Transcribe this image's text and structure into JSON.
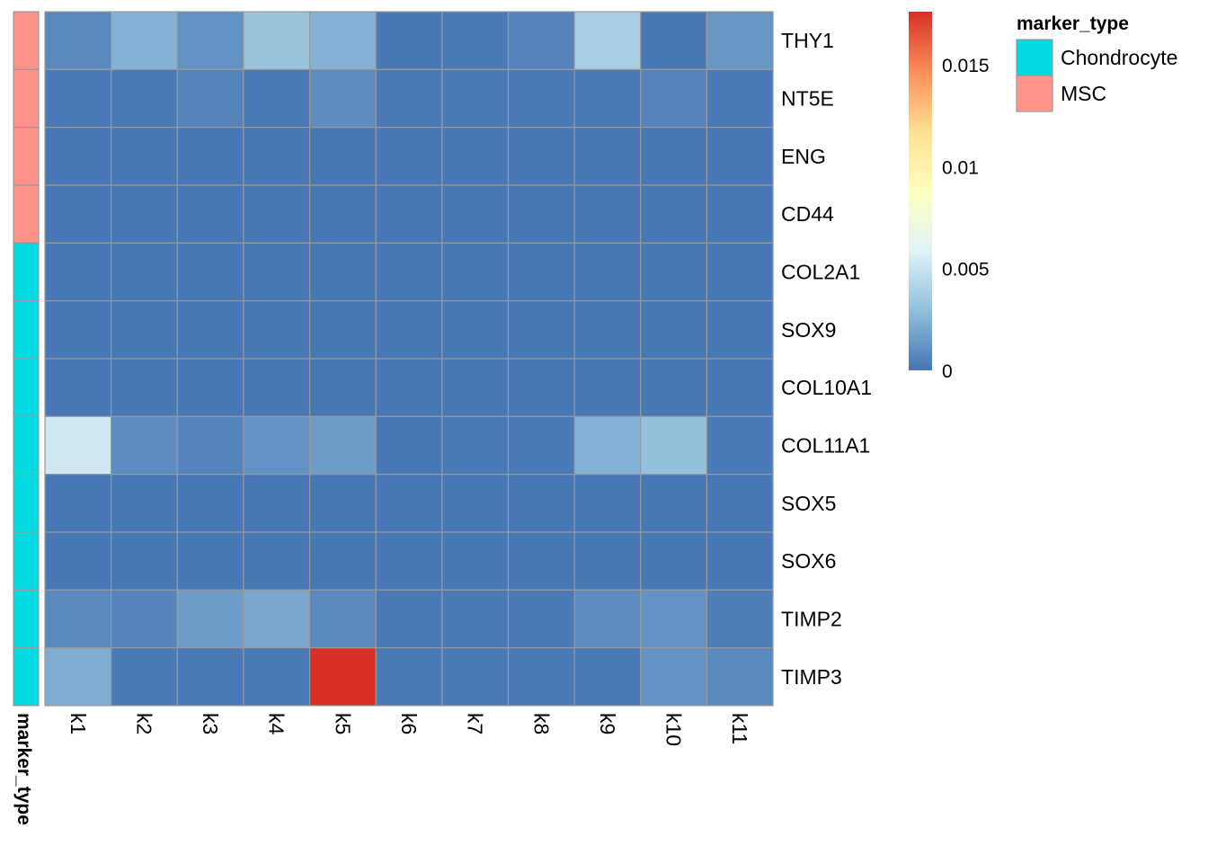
{
  "chart_data": {
    "type": "heatmap",
    "columns": [
      "k1",
      "k2",
      "k3",
      "k4",
      "k5",
      "k6",
      "k7",
      "k8",
      "k9",
      "k10",
      "k11"
    ],
    "rows": [
      "THY1",
      "NT5E",
      "ENG",
      "CD44",
      "COL2A1",
      "SOX9",
      "COL10A1",
      "COL11A1",
      "SOX5",
      "SOX6",
      "TIMP2",
      "TIMP3"
    ],
    "values": [
      [
        0.0008,
        0.0024,
        0.0011,
        0.0032,
        0.0024,
        0.0001,
        0.0002,
        0.0006,
        0.0038,
        0.0001,
        0.0013
      ],
      [
        0.0002,
        0.0002,
        0.0006,
        0.0002,
        0.0009,
        0.0002,
        0.0002,
        0.0002,
        0.0002,
        0.0006,
        0.0002
      ],
      [
        0.0001,
        0.0001,
        0.0001,
        0.0001,
        0.0001,
        0.0001,
        0.0001,
        0.0001,
        0.0001,
        0.0001,
        0.0001
      ],
      [
        0.0001,
        0.0001,
        0.0001,
        0.0001,
        0.0001,
        0.0001,
        0.0001,
        0.0001,
        0.0001,
        0.0001,
        0.0001
      ],
      [
        0.0001,
        0.0001,
        0.0001,
        0.0001,
        0.0001,
        0.0001,
        0.0001,
        0.0001,
        0.0001,
        0.0001,
        0.0001
      ],
      [
        0.0001,
        0.0001,
        0.0001,
        0.0001,
        0.0001,
        0.0001,
        0.0001,
        0.0001,
        0.0001,
        0.0001,
        0.0001
      ],
      [
        0.0001,
        0.0001,
        0.0001,
        0.0001,
        0.0001,
        0.0001,
        0.0001,
        0.0001,
        0.0001,
        0.0001,
        0.0001
      ],
      [
        0.0052,
        0.0009,
        0.0006,
        0.0011,
        0.0016,
        0.0001,
        0.0002,
        0.0002,
        0.0024,
        0.003,
        0.0002
      ],
      [
        0.0001,
        0.0001,
        0.0001,
        0.0001,
        0.0001,
        0.0001,
        0.0001,
        0.0001,
        0.0001,
        0.0001,
        0.0001
      ],
      [
        0.0001,
        0.0001,
        0.0001,
        0.0001,
        0.0001,
        0.0001,
        0.0001,
        0.0001,
        0.0001,
        0.0001,
        0.0001
      ],
      [
        0.0008,
        0.0006,
        0.0016,
        0.002,
        0.0008,
        0.0002,
        0.0002,
        0.0002,
        0.0009,
        0.0011,
        0.0004
      ],
      [
        0.0022,
        0.0002,
        0.0002,
        0.0002,
        0.0176,
        0.0002,
        0.0002,
        0.0002,
        0.0002,
        0.0011,
        0.0008
      ]
    ],
    "row_annotation": {
      "title": "marker_type",
      "values": [
        "MSC",
        "MSC",
        "MSC",
        "MSC",
        "Chondrocyte",
        "Chondrocyte",
        "Chondrocyte",
        "Chondrocyte",
        "Chondrocyte",
        "Chondrocyte",
        "Chondrocyte",
        "Chondrocyte"
      ],
      "legend": [
        {
          "label": "Chondrocyte",
          "color": "#00DAE0"
        },
        {
          "label": "MSC",
          "color": "#FF9289"
        }
      ]
    },
    "color_scale": {
      "min": 0,
      "max": 0.0176,
      "ticks": [
        0,
        0.005,
        0.01,
        0.015
      ],
      "tick_labels": [
        "0",
        "0.005",
        "0.01",
        "0.015"
      ],
      "colors": [
        "#4575B4",
        "#91BFDB",
        "#E0F3F8",
        "#FFFFBF",
        "#FEE090",
        "#FC8D59",
        "#D73027"
      ]
    },
    "grid": true,
    "cell_border_color": "#999999",
    "legend_position": "right"
  }
}
